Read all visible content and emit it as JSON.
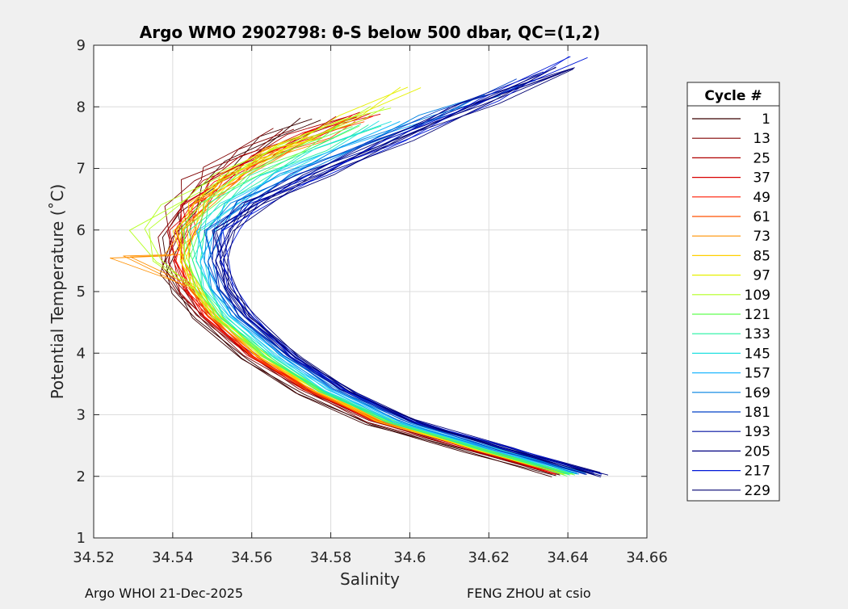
{
  "chart_data": {
    "type": "line",
    "title": "Argo WMO 2902798: θ-S below 500 dbar,  QC=(1,2)",
    "xlabel": "Salinity",
    "ylabel": "Potential Temperature (˚C)",
    "xlim": [
      34.52,
      34.66
    ],
    "ylim": [
      1,
      9
    ],
    "xticks": [
      "34.52",
      "34.54",
      "34.56",
      "34.58",
      "34.6",
      "34.62",
      "34.64",
      "34.66"
    ],
    "yticks": [
      "1",
      "2",
      "3",
      "4",
      "5",
      "6",
      "7",
      "8",
      "9"
    ],
    "grid": true,
    "legend": {
      "title": "Cycle #",
      "position": "right-outside",
      "entries": [
        "1",
        "13",
        "25",
        "37",
        "49",
        "61",
        "73",
        "85",
        "97",
        "109",
        "121",
        "133",
        "145",
        "157",
        "169",
        "181",
        "193",
        "205",
        "217",
        "229"
      ]
    },
    "series": [
      {
        "name": "1",
        "color": "#3a0000",
        "points": [
          [
            34.637,
            2.0
          ],
          [
            34.615,
            2.4
          ],
          [
            34.59,
            2.85
          ],
          [
            34.572,
            3.35
          ],
          [
            34.558,
            3.9
          ],
          [
            34.546,
            4.55
          ],
          [
            34.541,
            4.95
          ],
          [
            34.538,
            5.3
          ],
          [
            34.54,
            5.9
          ],
          [
            34.543,
            6.3
          ],
          [
            34.548,
            6.7
          ],
          [
            34.556,
            7.1
          ],
          [
            34.565,
            7.5
          ],
          [
            34.575,
            7.8
          ]
        ]
      },
      {
        "name": "13",
        "color": "#800000",
        "points": [
          [
            34.637,
            2.05
          ],
          [
            34.615,
            2.45
          ],
          [
            34.59,
            2.9
          ],
          [
            34.573,
            3.4
          ],
          [
            34.559,
            3.95
          ],
          [
            34.547,
            4.6
          ],
          [
            34.542,
            5.0
          ],
          [
            34.538,
            5.4
          ],
          [
            34.539,
            5.9
          ],
          [
            34.541,
            6.4
          ],
          [
            34.545,
            6.8
          ],
          [
            34.55,
            7.0
          ],
          [
            34.558,
            7.3
          ],
          [
            34.568,
            7.65
          ]
        ]
      },
      {
        "name": "25",
        "color": "#b00000",
        "points": [
          [
            34.638,
            2.05
          ],
          [
            34.616,
            2.45
          ],
          [
            34.591,
            2.9
          ],
          [
            34.574,
            3.4
          ],
          [
            34.56,
            3.95
          ],
          [
            34.548,
            4.6
          ],
          [
            34.543,
            5.0
          ],
          [
            34.54,
            5.5
          ],
          [
            34.541,
            6.0
          ],
          [
            34.544,
            6.4
          ],
          [
            34.55,
            6.8
          ],
          [
            34.56,
            7.2
          ],
          [
            34.572,
            7.55
          ],
          [
            34.584,
            7.85
          ]
        ]
      },
      {
        "name": "37",
        "color": "#d80000",
        "points": [
          [
            34.638,
            2.05
          ],
          [
            34.616,
            2.45
          ],
          [
            34.591,
            2.9
          ],
          [
            34.574,
            3.4
          ],
          [
            34.56,
            3.95
          ],
          [
            34.549,
            4.6
          ],
          [
            34.544,
            5.05
          ],
          [
            34.541,
            5.5
          ],
          [
            34.542,
            6.0
          ],
          [
            34.545,
            6.4
          ],
          [
            34.552,
            6.8
          ],
          [
            34.562,
            7.2
          ],
          [
            34.575,
            7.6
          ],
          [
            34.59,
            7.9
          ]
        ]
      },
      {
        "name": "49",
        "color": "#ff1a00",
        "points": [
          [
            34.638,
            2.05
          ],
          [
            34.616,
            2.45
          ],
          [
            34.592,
            2.9
          ],
          [
            34.575,
            3.4
          ],
          [
            34.561,
            3.95
          ],
          [
            34.549,
            4.6
          ],
          [
            34.544,
            5.05
          ],
          [
            34.542,
            5.5
          ],
          [
            34.543,
            6.0
          ],
          [
            34.546,
            6.4
          ],
          [
            34.553,
            6.8
          ],
          [
            34.563,
            7.2
          ],
          [
            34.576,
            7.55
          ],
          [
            34.588,
            7.85
          ]
        ]
      },
      {
        "name": "61",
        "color": "#ff5000",
        "points": [
          [
            34.639,
            2.05
          ],
          [
            34.617,
            2.45
          ],
          [
            34.592,
            2.9
          ],
          [
            34.575,
            3.4
          ],
          [
            34.561,
            3.95
          ],
          [
            34.55,
            4.6
          ],
          [
            34.545,
            5.05
          ],
          [
            34.543,
            5.5
          ],
          [
            34.544,
            6.0
          ],
          [
            34.547,
            6.4
          ],
          [
            34.554,
            6.8
          ],
          [
            34.564,
            7.2
          ],
          [
            34.577,
            7.5
          ],
          [
            34.586,
            7.75
          ]
        ]
      },
      {
        "name": "73",
        "color": "#ff9000",
        "points": [
          [
            34.639,
            2.05
          ],
          [
            34.617,
            2.45
          ],
          [
            34.593,
            2.9
          ],
          [
            34.576,
            3.4
          ],
          [
            34.562,
            3.95
          ],
          [
            34.55,
            4.6
          ],
          [
            34.545,
            5.05
          ],
          [
            34.527,
            5.56
          ],
          [
            34.54,
            5.6
          ],
          [
            34.544,
            6.0
          ],
          [
            34.548,
            6.45
          ],
          [
            34.556,
            6.85
          ],
          [
            34.566,
            7.2
          ],
          [
            34.578,
            7.5
          ]
        ]
      },
      {
        "name": "85",
        "color": "#ffd000",
        "points": [
          [
            34.639,
            2.05
          ],
          [
            34.617,
            2.45
          ],
          [
            34.593,
            2.9
          ],
          [
            34.576,
            3.4
          ],
          [
            34.562,
            3.95
          ],
          [
            34.551,
            4.6
          ],
          [
            34.546,
            5.05
          ],
          [
            34.543,
            5.5
          ],
          [
            34.543,
            6.0
          ],
          [
            34.547,
            6.45
          ],
          [
            34.555,
            6.9
          ],
          [
            34.565,
            7.3
          ],
          [
            34.575,
            7.5
          ]
        ]
      },
      {
        "name": "97",
        "color": "#e6f000",
        "points": [
          [
            34.64,
            2.05
          ],
          [
            34.618,
            2.45
          ],
          [
            34.594,
            2.9
          ],
          [
            34.577,
            3.4
          ],
          [
            34.563,
            3.95
          ],
          [
            34.551,
            4.6
          ],
          [
            34.546,
            5.05
          ],
          [
            34.543,
            5.5
          ],
          [
            34.543,
            6.0
          ],
          [
            34.548,
            6.5
          ],
          [
            34.557,
            6.95
          ],
          [
            34.57,
            7.4
          ],
          [
            34.585,
            7.85
          ],
          [
            34.6,
            8.33
          ]
        ]
      },
      {
        "name": "109",
        "color": "#b4ff20",
        "points": [
          [
            34.64,
            2.05
          ],
          [
            34.618,
            2.45
          ],
          [
            34.594,
            2.9
          ],
          [
            34.577,
            3.4
          ],
          [
            34.563,
            3.95
          ],
          [
            34.551,
            4.6
          ],
          [
            34.546,
            5.05
          ],
          [
            34.536,
            5.5
          ],
          [
            34.532,
            6.0
          ],
          [
            34.54,
            6.4
          ],
          [
            34.553,
            6.9
          ],
          [
            34.568,
            7.35
          ],
          [
            34.585,
            7.8
          ],
          [
            34.593,
            8.0
          ]
        ]
      },
      {
        "name": "121",
        "color": "#60ff50",
        "points": [
          [
            34.641,
            2.02
          ],
          [
            34.619,
            2.42
          ],
          [
            34.595,
            2.88
          ],
          [
            34.578,
            3.38
          ],
          [
            34.564,
            3.93
          ],
          [
            34.552,
            4.58
          ],
          [
            34.547,
            5.05
          ],
          [
            34.544,
            5.5
          ],
          [
            34.544,
            6.0
          ],
          [
            34.549,
            6.45
          ],
          [
            34.559,
            6.9
          ],
          [
            34.572,
            7.3
          ],
          [
            34.585,
            7.7
          ]
        ]
      },
      {
        "name": "133",
        "color": "#20f0a0",
        "points": [
          [
            34.641,
            2.02
          ],
          [
            34.619,
            2.42
          ],
          [
            34.595,
            2.88
          ],
          [
            34.578,
            3.38
          ],
          [
            34.565,
            3.93
          ],
          [
            34.553,
            4.58
          ],
          [
            34.548,
            5.05
          ],
          [
            34.546,
            5.5
          ],
          [
            34.547,
            6.0
          ],
          [
            34.552,
            6.45
          ],
          [
            34.562,
            6.9
          ],
          [
            34.576,
            7.3
          ],
          [
            34.59,
            7.7
          ]
        ]
      },
      {
        "name": "145",
        "color": "#20e0e0",
        "points": [
          [
            34.642,
            2.05
          ],
          [
            34.62,
            2.45
          ],
          [
            34.596,
            2.9
          ],
          [
            34.579,
            3.4
          ],
          [
            34.566,
            3.95
          ],
          [
            34.554,
            4.6
          ],
          [
            34.549,
            5.05
          ],
          [
            34.547,
            5.5
          ],
          [
            34.548,
            6.0
          ],
          [
            34.554,
            6.45
          ],
          [
            34.565,
            6.9
          ],
          [
            34.579,
            7.3
          ],
          [
            34.595,
            7.75
          ]
        ]
      },
      {
        "name": "157",
        "color": "#20b8ff",
        "points": [
          [
            34.643,
            2.05
          ],
          [
            34.621,
            2.45
          ],
          [
            34.597,
            2.9
          ],
          [
            34.58,
            3.4
          ],
          [
            34.567,
            3.95
          ],
          [
            34.555,
            4.6
          ],
          [
            34.55,
            5.05
          ],
          [
            34.548,
            5.5
          ],
          [
            34.549,
            6.0
          ],
          [
            34.556,
            6.45
          ],
          [
            34.568,
            6.9
          ],
          [
            34.583,
            7.3
          ],
          [
            34.6,
            7.75
          ]
        ]
      },
      {
        "name": "169",
        "color": "#0080e0",
        "points": [
          [
            34.644,
            2.05
          ],
          [
            34.622,
            2.45
          ],
          [
            34.598,
            2.9
          ],
          [
            34.581,
            3.4
          ],
          [
            34.568,
            3.95
          ],
          [
            34.556,
            4.6
          ],
          [
            34.551,
            5.05
          ],
          [
            34.549,
            5.5
          ],
          [
            34.55,
            6.0
          ],
          [
            34.557,
            6.45
          ],
          [
            34.57,
            6.9
          ],
          [
            34.586,
            7.35
          ],
          [
            34.605,
            7.85
          ],
          [
            34.62,
            8.2
          ]
        ]
      },
      {
        "name": "181",
        "color": "#0040c8",
        "points": [
          [
            34.645,
            2.05
          ],
          [
            34.623,
            2.45
          ],
          [
            34.599,
            2.9
          ],
          [
            34.582,
            3.4
          ],
          [
            34.569,
            3.95
          ],
          [
            34.557,
            4.6
          ],
          [
            34.552,
            5.05
          ],
          [
            34.55,
            5.5
          ],
          [
            34.551,
            6.0
          ],
          [
            34.559,
            6.45
          ],
          [
            34.572,
            6.9
          ],
          [
            34.59,
            7.4
          ],
          [
            34.61,
            7.95
          ],
          [
            34.63,
            8.45
          ]
        ]
      },
      {
        "name": "193",
        "color": "#0010a0",
        "points": [
          [
            34.646,
            2.05
          ],
          [
            34.624,
            2.45
          ],
          [
            34.6,
            2.9
          ],
          [
            34.583,
            3.4
          ],
          [
            34.57,
            3.95
          ],
          [
            34.558,
            4.6
          ],
          [
            34.553,
            5.05
          ],
          [
            34.551,
            5.5
          ],
          [
            34.552,
            6.0
          ],
          [
            34.56,
            6.45
          ],
          [
            34.574,
            6.9
          ],
          [
            34.592,
            7.4
          ],
          [
            34.613,
            8.0
          ],
          [
            34.635,
            8.55
          ]
        ]
      },
      {
        "name": "205",
        "color": "#000080",
        "points": [
          [
            34.647,
            2.05
          ],
          [
            34.625,
            2.45
          ],
          [
            34.601,
            2.9
          ],
          [
            34.584,
            3.4
          ],
          [
            34.571,
            3.95
          ],
          [
            34.559,
            4.6
          ],
          [
            34.554,
            5.05
          ],
          [
            34.552,
            5.5
          ],
          [
            34.553,
            6.0
          ],
          [
            34.561,
            6.45
          ],
          [
            34.575,
            6.9
          ],
          [
            34.594,
            7.45
          ],
          [
            34.616,
            8.05
          ],
          [
            34.64,
            8.62
          ]
        ]
      },
      {
        "name": "217",
        "color": "#0018d8",
        "points": [
          [
            34.648,
            2.02
          ],
          [
            34.626,
            2.42
          ],
          [
            34.602,
            2.88
          ],
          [
            34.585,
            3.38
          ],
          [
            34.571,
            3.93
          ],
          [
            34.56,
            4.58
          ],
          [
            34.555,
            5.05
          ],
          [
            34.553,
            5.5
          ],
          [
            34.554,
            6.0
          ],
          [
            34.562,
            6.45
          ],
          [
            34.577,
            6.9
          ],
          [
            34.597,
            7.45
          ],
          [
            34.62,
            8.1
          ],
          [
            34.642,
            8.8
          ]
        ]
      },
      {
        "name": "229",
        "color": "#000070",
        "points": [
          [
            34.649,
            2.0
          ],
          [
            34.627,
            2.4
          ],
          [
            34.603,
            2.86
          ],
          [
            34.586,
            3.36
          ],
          [
            34.572,
            3.92
          ],
          [
            34.56,
            4.58
          ],
          [
            34.555,
            5.05
          ],
          [
            34.553,
            5.5
          ],
          [
            34.554,
            6.0
          ],
          [
            34.563,
            6.45
          ],
          [
            34.578,
            6.9
          ],
          [
            34.598,
            7.45
          ],
          [
            34.62,
            8.05
          ],
          [
            34.64,
            8.63
          ]
        ]
      }
    ]
  },
  "footer": {
    "left": "Argo WHOI 21-Dec-2025",
    "right": "FENG ZHOU at csio"
  }
}
